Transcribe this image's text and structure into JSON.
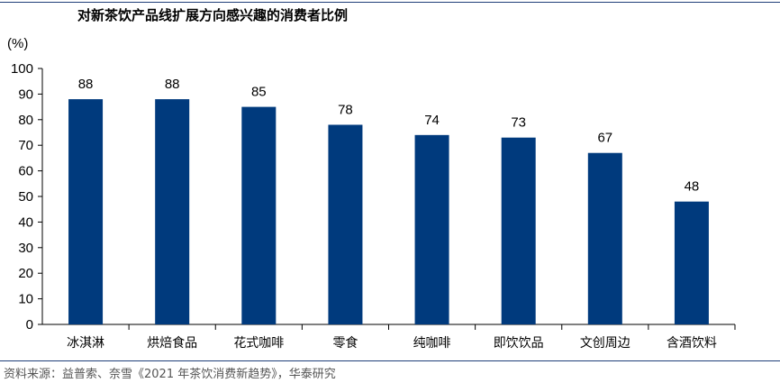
{
  "title": "对新茶饮产品线扩展方向感兴趣的消费者比例",
  "unit_label": "(%)",
  "source": "资料来源：益普索、奈雪《2021 年茶饮消费新趋势》，华泰研究",
  "colors": {
    "bar": "#003a7d",
    "rule": "#1f3f78",
    "axis": "#000000"
  },
  "chart_data": {
    "type": "bar",
    "title": "对新茶饮产品线扩展方向感兴趣的消费者比例",
    "ylabel": "(%)",
    "xlabel": "",
    "ylim": [
      0,
      100
    ],
    "yticks": [
      0,
      10,
      20,
      30,
      40,
      50,
      60,
      70,
      80,
      90,
      100
    ],
    "grid": false,
    "categories": [
      "冰淇淋",
      "烘焙食品",
      "花式咖啡",
      "零食",
      "纯咖啡",
      "即饮饮品",
      "文创周边",
      "含酒饮料"
    ],
    "values": [
      88,
      88,
      85,
      78,
      74,
      73,
      67,
      48
    ]
  }
}
